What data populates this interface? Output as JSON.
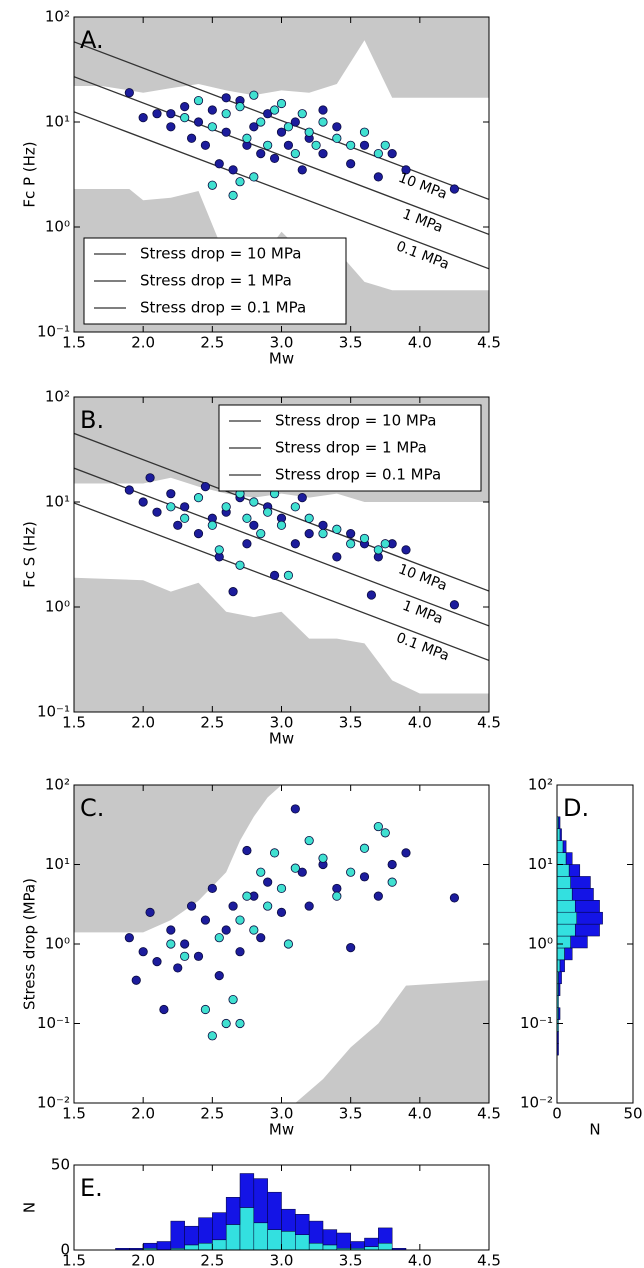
{
  "chart_data": [
    {
      "type": "scatter",
      "panel_label": "A.",
      "xlabel": "Mw",
      "ylabel": "Fc P (Hz)",
      "xlim": [
        1.5,
        4.5
      ],
      "ylim": [
        0.1,
        100
      ],
      "yscale": "log",
      "xticks": [
        1.5,
        {
          "value": 2,
          "label": "2.0"
        },
        2.5,
        {
          "value": 3,
          "label": "3.0"
        },
        3.5,
        {
          "value": 4,
          "label": "4.0"
        },
        4.5
      ],
      "yticks": [
        {
          "value": 0.1,
          "label": "10⁻¹"
        },
        {
          "value": 1,
          "label": "10⁰"
        },
        {
          "value": 10,
          "label": "10¹"
        },
        {
          "value": 100,
          "label": "10²"
        }
      ],
      "shaded": {
        "color": "#c8c8c8",
        "x": [
          1.5,
          1.7,
          1.9,
          2.0,
          2.2,
          2.4,
          2.6,
          2.8,
          3.0,
          3.2,
          3.4,
          3.6,
          3.8,
          4.0,
          4.5
        ],
        "upper": [
          22,
          22,
          20,
          19,
          21,
          23,
          20,
          18,
          20,
          19,
          23,
          60,
          17,
          17,
          17
        ],
        "lower": [
          2.3,
          2.3,
          2.3,
          1.8,
          1.9,
          2.2,
          0.5,
          0.4,
          0.9,
          0.5,
          0.6,
          0.3,
          0.25,
          0.25,
          0.25
        ]
      },
      "lines": [
        {
          "name": "Stress drop = 10 MPa",
          "label": "10 MPa",
          "x": [
            1.5,
            4.5
          ],
          "values": [
            58,
            1.83
          ]
        },
        {
          "name": "Stress drop = 1 MPa",
          "label": "1 MPa",
          "x": [
            1.5,
            4.5
          ],
          "values": [
            27,
            0.85
          ]
        },
        {
          "name": "Stress drop = 0.1 MPa",
          "label": "0.1 MPa",
          "x": [
            1.5,
            4.5
          ],
          "values": [
            12.5,
            0.4
          ]
        }
      ],
      "line_color": "#333333",
      "legend": "lower left",
      "series": [
        {
          "color": "#1c1c9c",
          "x": [
            1.9,
            2.0,
            2.1,
            2.2,
            2.3,
            2.35,
            2.4,
            2.45,
            2.5,
            2.55,
            2.6,
            2.65,
            2.7,
            2.75,
            2.8,
            2.85,
            2.9,
            2.95,
            3.0,
            3.05,
            3.1,
            3.15,
            3.2,
            3.3,
            3.4,
            3.5,
            3.6,
            3.7,
            3.8,
            3.9,
            4.25,
            3.3,
            2.6,
            2.2
          ],
          "values": [
            19,
            11,
            12,
            9,
            14,
            7,
            10,
            6,
            13,
            4,
            8,
            3.5,
            16,
            6,
            9,
            5,
            12,
            4.5,
            8,
            6,
            10,
            3.5,
            7,
            5,
            9,
            4,
            6,
            3,
            5,
            3.5,
            2.3,
            13,
            17,
            12
          ]
        },
        {
          "color": "#40e0d0",
          "x": [
            2.3,
            2.4,
            2.5,
            2.5,
            2.6,
            2.65,
            2.7,
            2.75,
            2.8,
            2.85,
            2.9,
            2.95,
            3.0,
            3.05,
            3.1,
            3.15,
            3.2,
            3.25,
            3.3,
            3.4,
            3.5,
            3.6,
            3.7,
            3.75,
            2.7,
            2.8
          ],
          "values": [
            11,
            16,
            9,
            2.5,
            12,
            2,
            14,
            7,
            18,
            10,
            6,
            13,
            15,
            9,
            5,
            12,
            8,
            6,
            10,
            7,
            6,
            8,
            5,
            6,
            2.7,
            3
          ]
        }
      ]
    },
    {
      "type": "scatter",
      "panel_label": "B.",
      "xlabel": "Mw",
      "ylabel": "Fc S (Hz)",
      "xlim": [
        1.5,
        4.5
      ],
      "ylim": [
        0.1,
        100
      ],
      "yscale": "log",
      "xticks": [
        1.5,
        {
          "value": 2,
          "label": "2.0"
        },
        2.5,
        {
          "value": 3,
          "label": "3.0"
        },
        3.5,
        {
          "value": 4,
          "label": "4.0"
        },
        4.5
      ],
      "yticks": [
        {
          "value": 0.1,
          "label": "10⁻¹"
        },
        {
          "value": 1,
          "label": "10⁰"
        },
        {
          "value": 10,
          "label": "10¹"
        },
        {
          "value": 100,
          "label": "10²"
        }
      ],
      "shaded": {
        "color": "#c8c8c8",
        "x": [
          1.5,
          2.0,
          2.2,
          2.4,
          2.6,
          2.8,
          3.0,
          3.2,
          3.4,
          3.6,
          3.8,
          4.0,
          4.5
        ],
        "upper": [
          15,
          15,
          17,
          14,
          12,
          11,
          12,
          11,
          12,
          10,
          10,
          10,
          10
        ],
        "lower": [
          1.9,
          1.8,
          1.4,
          1.7,
          0.9,
          0.8,
          0.9,
          0.5,
          0.5,
          0.45,
          0.2,
          0.15,
          0.15
        ]
      },
      "lines": [
        {
          "name": "Stress drop = 10 MPa",
          "label": "10 MPa",
          "x": [
            1.5,
            4.5
          ],
          "values": [
            45,
            1.42
          ]
        },
        {
          "name": "Stress drop = 1 MPa",
          "label": "1 MPa",
          "x": [
            1.5,
            4.5
          ],
          "values": [
            21,
            0.66
          ]
        },
        {
          "name": "Stress drop = 0.1 MPa",
          "label": "0.1 MPa",
          "x": [
            1.5,
            4.5
          ],
          "values": [
            9.8,
            0.31
          ]
        }
      ],
      "line_color": "#333333",
      "legend": "upper right",
      "series": [
        {
          "color": "#1c1c9c",
          "x": [
            1.9,
            2.0,
            2.05,
            2.1,
            2.2,
            2.25,
            2.3,
            2.4,
            2.45,
            2.5,
            2.55,
            2.6,
            2.65,
            2.7,
            2.75,
            2.8,
            2.9,
            2.95,
            3.0,
            3.1,
            3.15,
            3.2,
            3.3,
            3.4,
            3.5,
            3.6,
            3.65,
            3.7,
            3.8,
            3.9,
            4.25
          ],
          "values": [
            13,
            10,
            17,
            8,
            12,
            6,
            9,
            5,
            14,
            7,
            3,
            8,
            1.4,
            11,
            4,
            6,
            9,
            2,
            7,
            4,
            11,
            5,
            6,
            3,
            5,
            4,
            1.3,
            3,
            4,
            3.5,
            1.05
          ]
        },
        {
          "color": "#40e0d0",
          "x": [
            2.2,
            2.3,
            2.4,
            2.5,
            2.55,
            2.6,
            2.7,
            2.7,
            2.75,
            2.8,
            2.85,
            2.9,
            2.95,
            3.0,
            3.05,
            3.1,
            3.2,
            3.3,
            3.4,
            3.5,
            3.6,
            3.7,
            3.75
          ],
          "values": [
            9,
            7,
            11,
            6,
            3.5,
            9,
            12,
            2.5,
            7,
            10,
            5,
            8,
            12,
            6,
            2,
            9,
            7,
            5,
            5.5,
            4,
            4.5,
            3.5,
            4
          ]
        }
      ]
    },
    {
      "type": "scatter",
      "panel_label": "C.",
      "xlabel": "Mw",
      "ylabel": "Stress drop (MPa)",
      "xlim": [
        1.5,
        4.5
      ],
      "ylim": [
        0.01,
        100
      ],
      "yscale": "log",
      "xticks": [
        1.5,
        {
          "value": 2,
          "label": "2.0"
        },
        2.5,
        {
          "value": 3,
          "label": "3.0"
        },
        3.5,
        {
          "value": 4,
          "label": "4.0"
        },
        4.5
      ],
      "yticks": [
        {
          "value": 0.01,
          "label": "10⁻²"
        },
        {
          "value": 0.1,
          "label": "10⁻¹"
        },
        {
          "value": 1,
          "label": "10⁰"
        },
        {
          "value": 10,
          "label": "10¹"
        },
        {
          "value": 100,
          "label": "10²"
        }
      ],
      "shaded": {
        "color": "#c8c8c8",
        "x": [
          1.5,
          2.0,
          2.2,
          2.4,
          2.6,
          2.7,
          2.8,
          2.9,
          3.0,
          3.1,
          3.3,
          3.5,
          3.7,
          3.9,
          4.5
        ],
        "upper": [
          1.4,
          1.4,
          2,
          3.5,
          8,
          20,
          40,
          70,
          100,
          100,
          100,
          100,
          100,
          100,
          100
        ],
        "lower": [
          0.01,
          0.01,
          0.01,
          0.01,
          0.01,
          0.01,
          0.01,
          0.01,
          0.01,
          0.01,
          0.02,
          0.05,
          0.1,
          0.3,
          0.35
        ]
      },
      "series": [
        {
          "color": "#1c1c9c",
          "x": [
            1.9,
            1.95,
            2.0,
            2.05,
            2.1,
            2.15,
            2.2,
            2.25,
            2.3,
            2.35,
            2.4,
            2.45,
            2.5,
            2.55,
            2.6,
            2.65,
            2.7,
            2.75,
            2.8,
            2.85,
            2.9,
            3.0,
            3.1,
            3.15,
            3.2,
            3.3,
            3.4,
            3.5,
            3.6,
            3.7,
            3.8,
            3.9,
            4.25
          ],
          "values": [
            1.2,
            0.35,
            0.8,
            2.5,
            0.6,
            0.15,
            1.5,
            0.5,
            1.0,
            3,
            0.7,
            2,
            5,
            0.4,
            1.5,
            3,
            0.8,
            15,
            4,
            1.2,
            6,
            2.5,
            50,
            8,
            3,
            10,
            5,
            0.9,
            7,
            4,
            10,
            14,
            3.8
          ]
        },
        {
          "color": "#40e0d0",
          "x": [
            2.2,
            2.3,
            2.45,
            2.5,
            2.55,
            2.6,
            2.65,
            2.7,
            2.7,
            2.75,
            2.8,
            2.85,
            2.9,
            2.95,
            3.0,
            3.05,
            3.1,
            3.2,
            3.3,
            3.4,
            3.5,
            3.6,
            3.7,
            3.75,
            3.8
          ],
          "values": [
            1.0,
            0.7,
            0.15,
            0.07,
            1.2,
            0.1,
            0.2,
            0.1,
            2,
            4,
            1.5,
            8,
            3,
            14,
            5,
            1,
            9,
            20,
            12,
            4,
            8,
            16,
            30,
            25,
            6
          ]
        }
      ]
    },
    {
      "type": "histogram",
      "orientation": "horizontal",
      "panel_label": "D.",
      "xlabel": "N",
      "xlim": [
        0,
        50
      ],
      "ylim": [
        0.01,
        100
      ],
      "yscale": "log",
      "xticks": [
        0,
        50
      ],
      "yticks": [
        {
          "value": 0.01,
          "label": "10⁻²"
        },
        {
          "value": 0.1,
          "label": "10⁻¹"
        },
        {
          "value": 1,
          "label": "10⁰"
        },
        {
          "value": 10,
          "label": "10¹"
        },
        {
          "value": 100,
          "label": "10²"
        }
      ],
      "bins": [
        0.04,
        0.056,
        0.079,
        0.112,
        0.158,
        0.224,
        0.316,
        0.447,
        0.631,
        0.891,
        1.259,
        1.778,
        2.512,
        3.548,
        5.012,
        7.079,
        10,
        14.13,
        19.95,
        28.18,
        39.81
      ],
      "series": [
        {
          "color": "#33e0e0",
          "values": [
            0,
            0,
            1,
            1,
            1,
            1,
            1,
            2,
            5,
            9,
            12,
            13,
            12,
            10,
            9,
            8,
            6,
            4,
            2,
            1
          ]
        },
        {
          "color": "#1414e6",
          "values": [
            1,
            1,
            0,
            1,
            0,
            1,
            2,
            3,
            5,
            11,
            16,
            17,
            16,
            14,
            13,
            7,
            4,
            2,
            1,
            1
          ]
        }
      ]
    },
    {
      "type": "histogram",
      "orientation": "vertical",
      "panel_label": "E.",
      "ylabel": "N",
      "xlim": [
        1.5,
        4.5
      ],
      "ylim": [
        0,
        50
      ],
      "xticks": [
        1.5,
        {
          "value": 2,
          "label": "2.0"
        },
        2.5,
        {
          "value": 3,
          "label": "3.0"
        },
        3.5,
        {
          "value": 4,
          "label": "4.0"
        },
        4.5
      ],
      "yticks": [
        0,
        50
      ],
      "bins": [
        1.8,
        1.9,
        2.0,
        2.1,
        2.2,
        2.3,
        2.4,
        2.5,
        2.6,
        2.7,
        2.8,
        2.9,
        3.0,
        3.1,
        3.2,
        3.3,
        3.4,
        3.5,
        3.6,
        3.7,
        3.8,
        3.9
      ],
      "series": [
        {
          "color": "#33e0e0",
          "values": [
            0,
            0,
            1,
            0,
            1,
            3,
            4,
            6,
            15,
            25,
            16,
            12,
            11,
            9,
            4,
            3,
            1,
            1,
            2,
            4,
            0
          ]
        },
        {
          "color": "#1414e6",
          "values": [
            1,
            1,
            3,
            5,
            16,
            11,
            15,
            16,
            16,
            20,
            26,
            22,
            13,
            12,
            13,
            9,
            9,
            4,
            5,
            9,
            1
          ]
        }
      ]
    }
  ]
}
